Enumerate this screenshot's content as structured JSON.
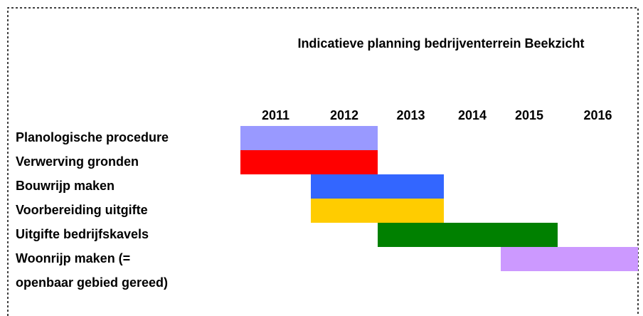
{
  "chart_data": {
    "type": "gantt",
    "title": "Indicatieve planning bedrijventerrein Beekzicht",
    "xticks": [
      2011,
      2012,
      2013,
      2014,
      2015,
      2016
    ],
    "tasks": [
      {
        "label": "Planologische procedure",
        "start": 2011,
        "end": 2012,
        "color": "#9999ff"
      },
      {
        "label": "Verwerving gronden",
        "start": 2011,
        "end": 2012,
        "color": "#ff0000"
      },
      {
        "label": "Bouwrijp maken",
        "start": 2012,
        "end": 2013,
        "color": "#3366ff"
      },
      {
        "label": "Voorbereiding uitgifte",
        "start": 2012,
        "end": 2013,
        "color": "#ffcc00"
      },
      {
        "label": "Uitgifte bedrijfskavels",
        "start": 2013,
        "end": 2015,
        "color": "#008000"
      },
      {
        "label": [
          "Woonrijp maken (=",
          "openbaar gebied gereed)"
        ],
        "start": 2015,
        "end": 2016,
        "color": "#cc99ff"
      }
    ]
  }
}
